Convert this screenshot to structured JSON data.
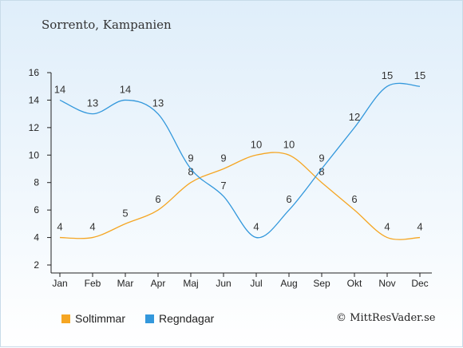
{
  "title": "Sorrento, Kampanien",
  "copyright": "© MittResVader.se",
  "colors": {
    "sun": "#f5a623",
    "rain": "#3398dc"
  },
  "chart_data": {
    "type": "line",
    "categories": [
      "Jan",
      "Feb",
      "Mar",
      "Apr",
      "Maj",
      "Jun",
      "Jul",
      "Aug",
      "Sep",
      "Okt",
      "Nov",
      "Dec"
    ],
    "series": [
      {
        "name": "Soltimmar",
        "values": [
          4,
          4,
          5,
          6,
          8,
          9,
          10,
          10,
          8,
          6,
          4,
          4
        ]
      },
      {
        "name": "Regndagar",
        "values": [
          14,
          13,
          14,
          13,
          9,
          7,
          4,
          6,
          9,
          12,
          15,
          15
        ]
      }
    ],
    "ylim": [
      2,
      16
    ],
    "yticks": [
      2,
      4,
      6,
      8,
      10,
      12,
      14,
      16
    ],
    "grid": false,
    "legend": "bottom-left"
  }
}
